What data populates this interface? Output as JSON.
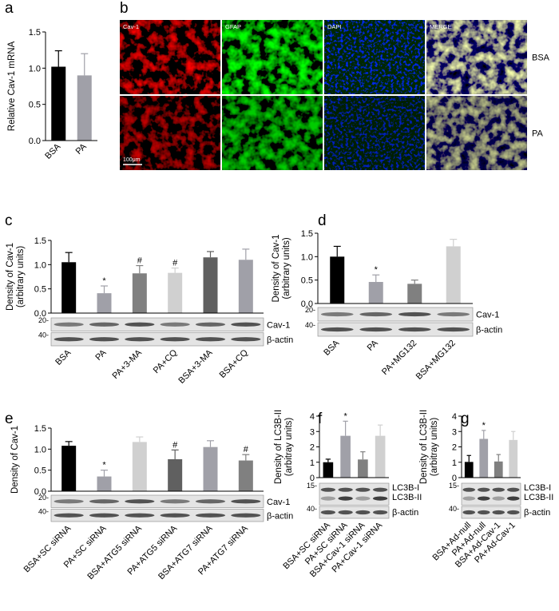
{
  "panel_labels": [
    "a",
    "b",
    "c",
    "d",
    "e",
    "f",
    "g"
  ],
  "image_panel": {
    "channels": [
      "Cav-1",
      "GFAP",
      "DAPI",
      "MERGE"
    ],
    "rows": [
      "BSA",
      "PA"
    ],
    "scale_bar": "100μm"
  },
  "chart_data": [
    {
      "type": "bar",
      "y_label": [
        "Relative Cav-1 mRNA"
      ],
      "categories": [
        "BSA",
        "PA"
      ],
      "values": [
        1.02,
        0.9
      ],
      "errors": [
        0.22,
        0.3
      ],
      "colors": [
        "#000000",
        "#a0a0a8"
      ],
      "ylim": [
        0,
        1.5
      ],
      "yticks": [
        {
          "value": 0,
          "label": "0.0"
        },
        {
          "value": 0.5,
          "label": "0.5"
        },
        {
          "value": 1,
          "label": "1.0"
        },
        {
          "value": 1.5,
          "label": "1.5"
        }
      ]
    },
    {
      "type": "bar",
      "y_label": [
        "Density of Cav-1",
        "(arbitrary units)"
      ],
      "categories": [
        "BSA",
        "PA",
        "PA+3-MA",
        "PA+CQ",
        "BSA+3-MA",
        "BSA+CQ"
      ],
      "values": [
        1.05,
        0.41,
        0.82,
        0.83,
        1.15,
        1.1
      ],
      "errors": [
        0.2,
        0.15,
        0.16,
        0.1,
        0.12,
        0.22
      ],
      "markers": [
        null,
        "*",
        "#",
        "#",
        null,
        null
      ],
      "colors": [
        "#000000",
        "#a0a0a8",
        "#808080",
        "#d0d0d0",
        "#606060",
        "#a0a0a8"
      ],
      "ylim": [
        0,
        1.5
      ],
      "yticks": [
        {
          "value": 0,
          "label": "0.0"
        },
        {
          "value": 0.5,
          "label": "0.5"
        },
        {
          "value": 1,
          "label": "1.0"
        },
        {
          "value": 1.5,
          "label": "1.5"
        }
      ],
      "blot_labels": [
        "Cav-1",
        "β-actin"
      ],
      "blot_markers": [
        "20-",
        "40-"
      ]
    },
    {
      "type": "bar",
      "y_label": [
        "Density of Cav-1",
        "(arbitrary units)"
      ],
      "categories": [
        "BSA",
        "PA",
        "PA+MG132",
        "BSA+MG132"
      ],
      "values": [
        1.0,
        0.46,
        0.42,
        1.22
      ],
      "errors": [
        0.22,
        0.15,
        0.08,
        0.15
      ],
      "markers": [
        null,
        "*",
        null,
        null
      ],
      "colors": [
        "#000000",
        "#a0a0a8",
        "#808080",
        "#d0d0d0"
      ],
      "ylim": [
        0,
        1.5
      ],
      "yticks": [
        {
          "value": 0,
          "label": "0.0"
        },
        {
          "value": 0.5,
          "label": "0.5"
        },
        {
          "value": 1,
          "label": "1.0"
        },
        {
          "value": 1.5,
          "label": "1.5"
        }
      ],
      "blot_labels": [
        "Cav-1",
        "β-actin"
      ],
      "blot_markers": [
        "20-",
        "40-"
      ]
    },
    {
      "type": "bar",
      "y_label": [
        "Density of Cav-1"
      ],
      "categories": [
        "BSA+SC siRNA",
        "PA+SC siRNA",
        "BSA+ATG5 siRNA",
        "PA+ATG5 siRNA",
        "BSA+ATG7 siRNA",
        "PA+ATG7 siRNA"
      ],
      "values": [
        1.08,
        0.35,
        1.17,
        0.76,
        1.05,
        0.73
      ],
      "errors": [
        0.1,
        0.15,
        0.12,
        0.22,
        0.15,
        0.14
      ],
      "markers": [
        null,
        "*",
        null,
        "#",
        null,
        "#"
      ],
      "colors": [
        "#000000",
        "#a0a0a8",
        "#d0d0d0",
        "#606060",
        "#a0a0a8",
        "#808080"
      ],
      "ylim": [
        0,
        1.5
      ],
      "yticks": [
        {
          "value": 0,
          "label": "0.0"
        },
        {
          "value": 0.5,
          "label": "0.5"
        },
        {
          "value": 1,
          "label": "1.0"
        },
        {
          "value": 1.5,
          "label": "1.5"
        }
      ],
      "blot_labels": [
        "Cav-1",
        "β-actin"
      ],
      "blot_markers": [
        "20-",
        "40-"
      ]
    },
    {
      "type": "bar",
      "y_label": [
        "Density of LC3B-II",
        "(arbitray units)"
      ],
      "categories": [
        "BSA+SC siRNA",
        "PA+SC siRNA",
        "BSA+Cav-1 siRNA",
        "PA+Cav-1 siRNA"
      ],
      "values": [
        1.0,
        2.72,
        1.18,
        2.72
      ],
      "errors": [
        0.2,
        0.95,
        0.5,
        0.7
      ],
      "markers": [
        null,
        "*",
        null,
        null
      ],
      "colors": [
        "#000000",
        "#a0a0a8",
        "#808080",
        "#d0d0d0"
      ],
      "ylim": [
        0,
        4
      ],
      "yticks": [
        0,
        1,
        2,
        3,
        4
      ],
      "blot_labels": [
        "LC3B-I",
        "LC3B-II",
        "β-actin"
      ],
      "blot_markers": [
        "15-",
        "40-"
      ]
    },
    {
      "type": "bar",
      "y_label": [
        "Density of LC3B-II",
        "(arbitray units)"
      ],
      "categories": [
        "BSA+Ad-null",
        "PA+Ad-null",
        "BSA+Ad-Cav-1",
        "PA+Ad-Cav-1"
      ],
      "values": [
        1.02,
        2.52,
        1.05,
        2.45
      ],
      "errors": [
        0.42,
        0.55,
        0.45,
        0.55
      ],
      "markers": [
        null,
        "*",
        null,
        null
      ],
      "colors": [
        "#000000",
        "#a0a0a8",
        "#808080",
        "#d0d0d0"
      ],
      "ylim": [
        0,
        4
      ],
      "yticks": [
        0,
        1,
        2,
        3,
        4
      ],
      "blot_labels": [
        "LC3B-I",
        "LC3B-II",
        "β-actin"
      ],
      "blot_markers": [
        "15-",
        "40-"
      ]
    }
  ]
}
